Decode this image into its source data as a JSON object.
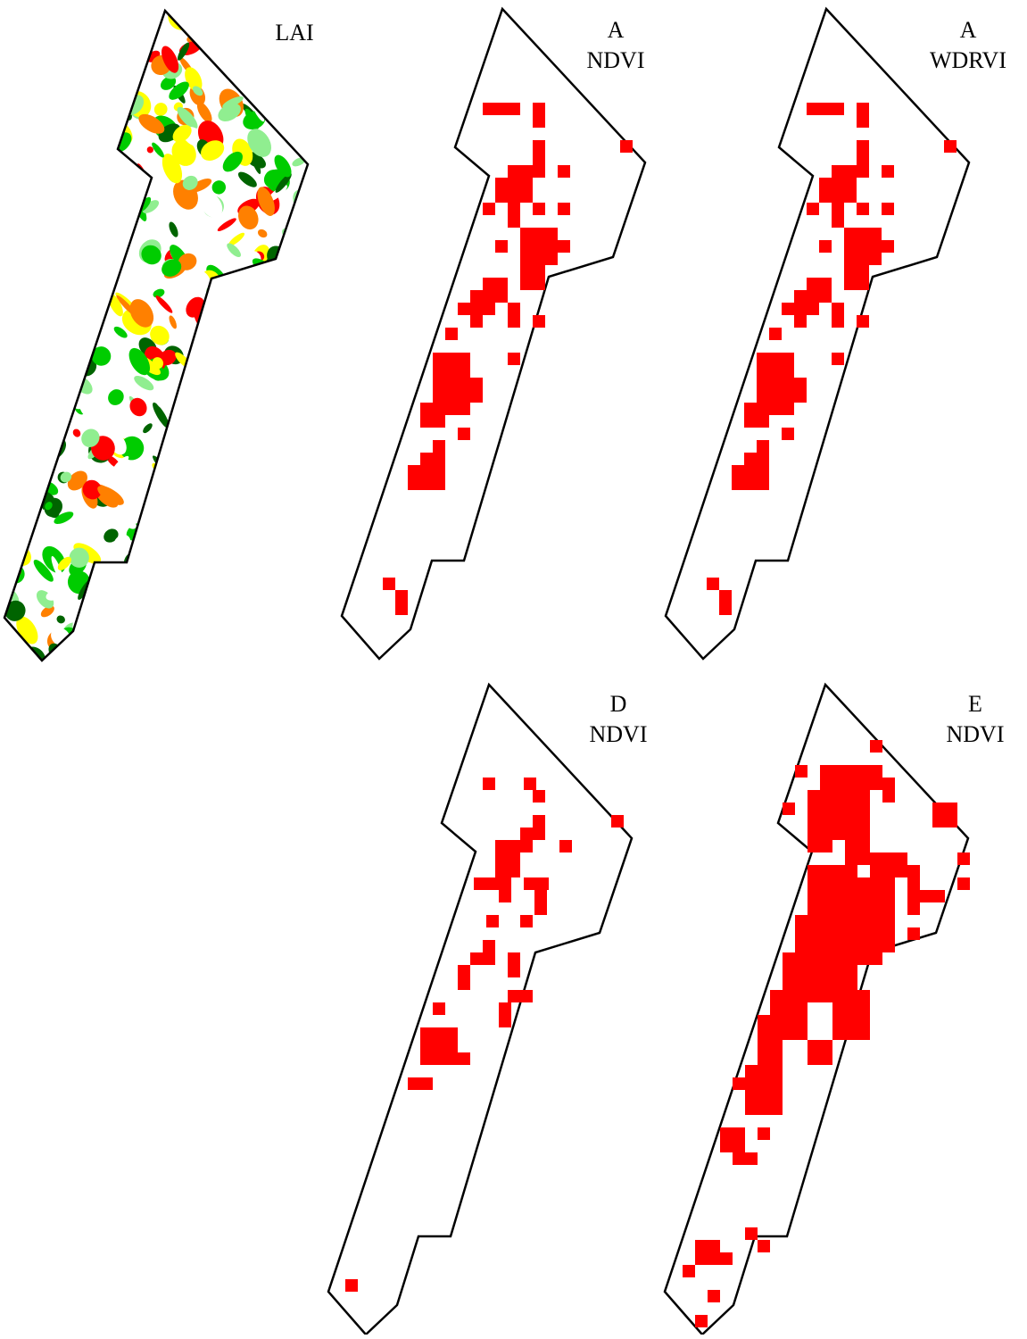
{
  "panels": [
    {
      "lines": [
        "LAI"
      ]
    },
    {
      "lines": [
        "A",
        "NDVI"
      ]
    },
    {
      "lines": [
        "A",
        "WDRVI"
      ]
    },
    {
      "lines": [
        "D",
        "NDVI"
      ]
    },
    {
      "lines": [
        "E",
        "NDVI"
      ]
    }
  ]
}
